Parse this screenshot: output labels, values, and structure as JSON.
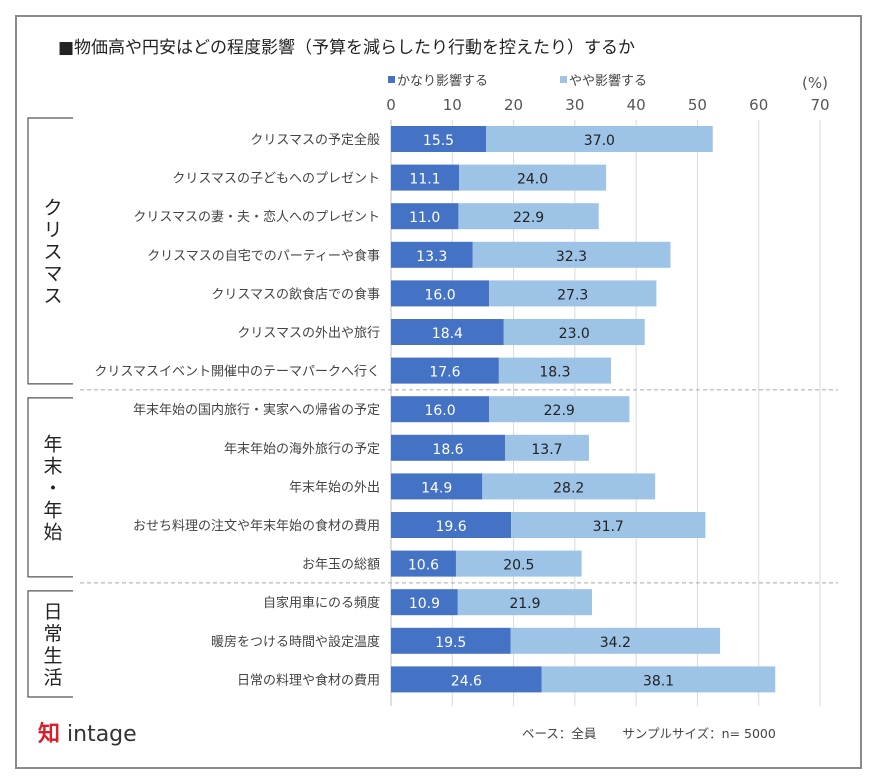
{
  "title": "■物価高や円安はどの程度影響（予算を減らしたり行動を控えたり）するか",
  "footer": {
    "base": "ベース：全員",
    "sample": "サンプルサイズ：n= 5000"
  },
  "logo": {
    "mark": "知",
    "text": "intage"
  },
  "chart_data": {
    "type": "bar",
    "orientation": "horizontal",
    "stacked": true,
    "unit_label": "(%)",
    "xlim": [
      0,
      70
    ],
    "xticks": [
      0,
      10,
      20,
      30,
      40,
      50,
      60,
      70
    ],
    "grid": true,
    "legend_position": "top",
    "categories": [
      "クリスマスの予定全般",
      "クリスマスの子どもへのプレゼント",
      "クリスマスの妻・夫・恋人へのプレゼント",
      "クリスマスの自宅でのパーティーや食事",
      "クリスマスの飲食店での食事",
      "クリスマスの外出や旅行",
      "クリスマスイベント開催中のテーマパークへ行く",
      "年末年始の国内旅行・実家への帰省の予定",
      "年末年始の海外旅行の予定",
      "年末年始の外出",
      "おせち料理の注文や年末年始の食材の費用",
      "お年玉の総額",
      "自家用車にのる頻度",
      "暖房をつける時間や設定温度",
      "日常の料理や食材の費用"
    ],
    "groups": [
      {
        "label": "クリスマス",
        "count": 7
      },
      {
        "label": "年末・年始",
        "count": 5
      },
      {
        "label": "日常生活",
        "count": 3
      }
    ],
    "series": [
      {
        "name": "かなり影響する",
        "color": "#4472c4",
        "values": [
          15.5,
          11.1,
          11.0,
          13.3,
          16.0,
          18.4,
          17.6,
          16.0,
          18.6,
          14.9,
          19.6,
          10.6,
          10.9,
          19.5,
          24.6
        ]
      },
      {
        "name": "やや影響する",
        "color": "#9dc3e6",
        "values": [
          37.0,
          24.0,
          22.9,
          32.3,
          27.3,
          23.0,
          18.3,
          22.9,
          13.7,
          28.2,
          31.7,
          20.5,
          21.9,
          34.2,
          38.1
        ]
      }
    ]
  }
}
